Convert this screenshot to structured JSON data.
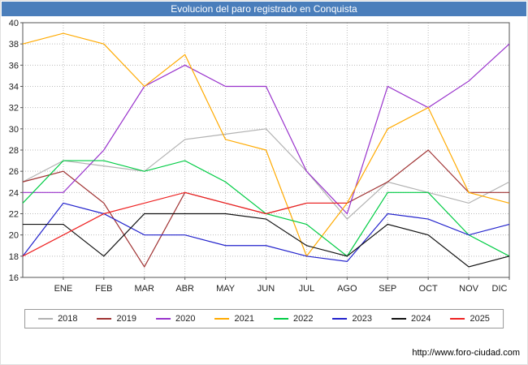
{
  "title": "Evolucion del paro registrado en Conquista",
  "footer": {
    "url": "http://www.foro-ciudad.com"
  },
  "colors": {
    "title_bar_bg": "#4a7ebb",
    "title_text": "#ffffff",
    "gridline": "#bbbbbb",
    "plot_border": "#555555"
  },
  "chart_data": {
    "type": "line",
    "title": "Evolucion del paro registrado en Conquista",
    "x_labels": [
      "ENE",
      "FEB",
      "MAR",
      "ABR",
      "MAY",
      "JUN",
      "JUL",
      "AGO",
      "SEP",
      "OCT",
      "NOV",
      "DIC"
    ],
    "ylim": [
      16,
      40
    ],
    "ytick_step": 2,
    "grid": true,
    "legend_position": "bottom",
    "includes_axis_start_value": true,
    "series": [
      {
        "name": "2018",
        "color": "#b2b2b2",
        "values": [
          25,
          27,
          26.5,
          26,
          29,
          29.5,
          30,
          26,
          21.5,
          25,
          24,
          23,
          25
        ]
      },
      {
        "name": "2019",
        "color": "#a03333",
        "values": [
          25,
          26,
          23,
          17,
          24,
          23,
          22,
          23,
          23,
          25,
          28,
          24,
          24
        ]
      },
      {
        "name": "2020",
        "color": "#9933cc",
        "values": [
          24,
          24,
          28,
          34,
          36,
          34,
          34,
          26,
          22,
          34,
          32,
          34.5,
          38
        ]
      },
      {
        "name": "2021",
        "color": "#ffaa00",
        "values": [
          38,
          39,
          38,
          34,
          37,
          29,
          28,
          18,
          23,
          30,
          32,
          24,
          23
        ]
      },
      {
        "name": "2022",
        "color": "#00cc44",
        "values": [
          23,
          27,
          27,
          26,
          27,
          25,
          22,
          21,
          18,
          24,
          24,
          20,
          18
        ]
      },
      {
        "name": "2023",
        "color": "#2222cc",
        "values": [
          18,
          23,
          22,
          20,
          20,
          19,
          19,
          18,
          17.5,
          22,
          21.5,
          20,
          21
        ]
      },
      {
        "name": "2024",
        "color": "#111111",
        "values": [
          21,
          21,
          18,
          22,
          22,
          22,
          21.5,
          19,
          18,
          21,
          20,
          17,
          18
        ]
      },
      {
        "name": "2025",
        "color": "#ee2222",
        "values": [
          18,
          20,
          22,
          23,
          24,
          23,
          22,
          23,
          23
        ]
      }
    ]
  }
}
